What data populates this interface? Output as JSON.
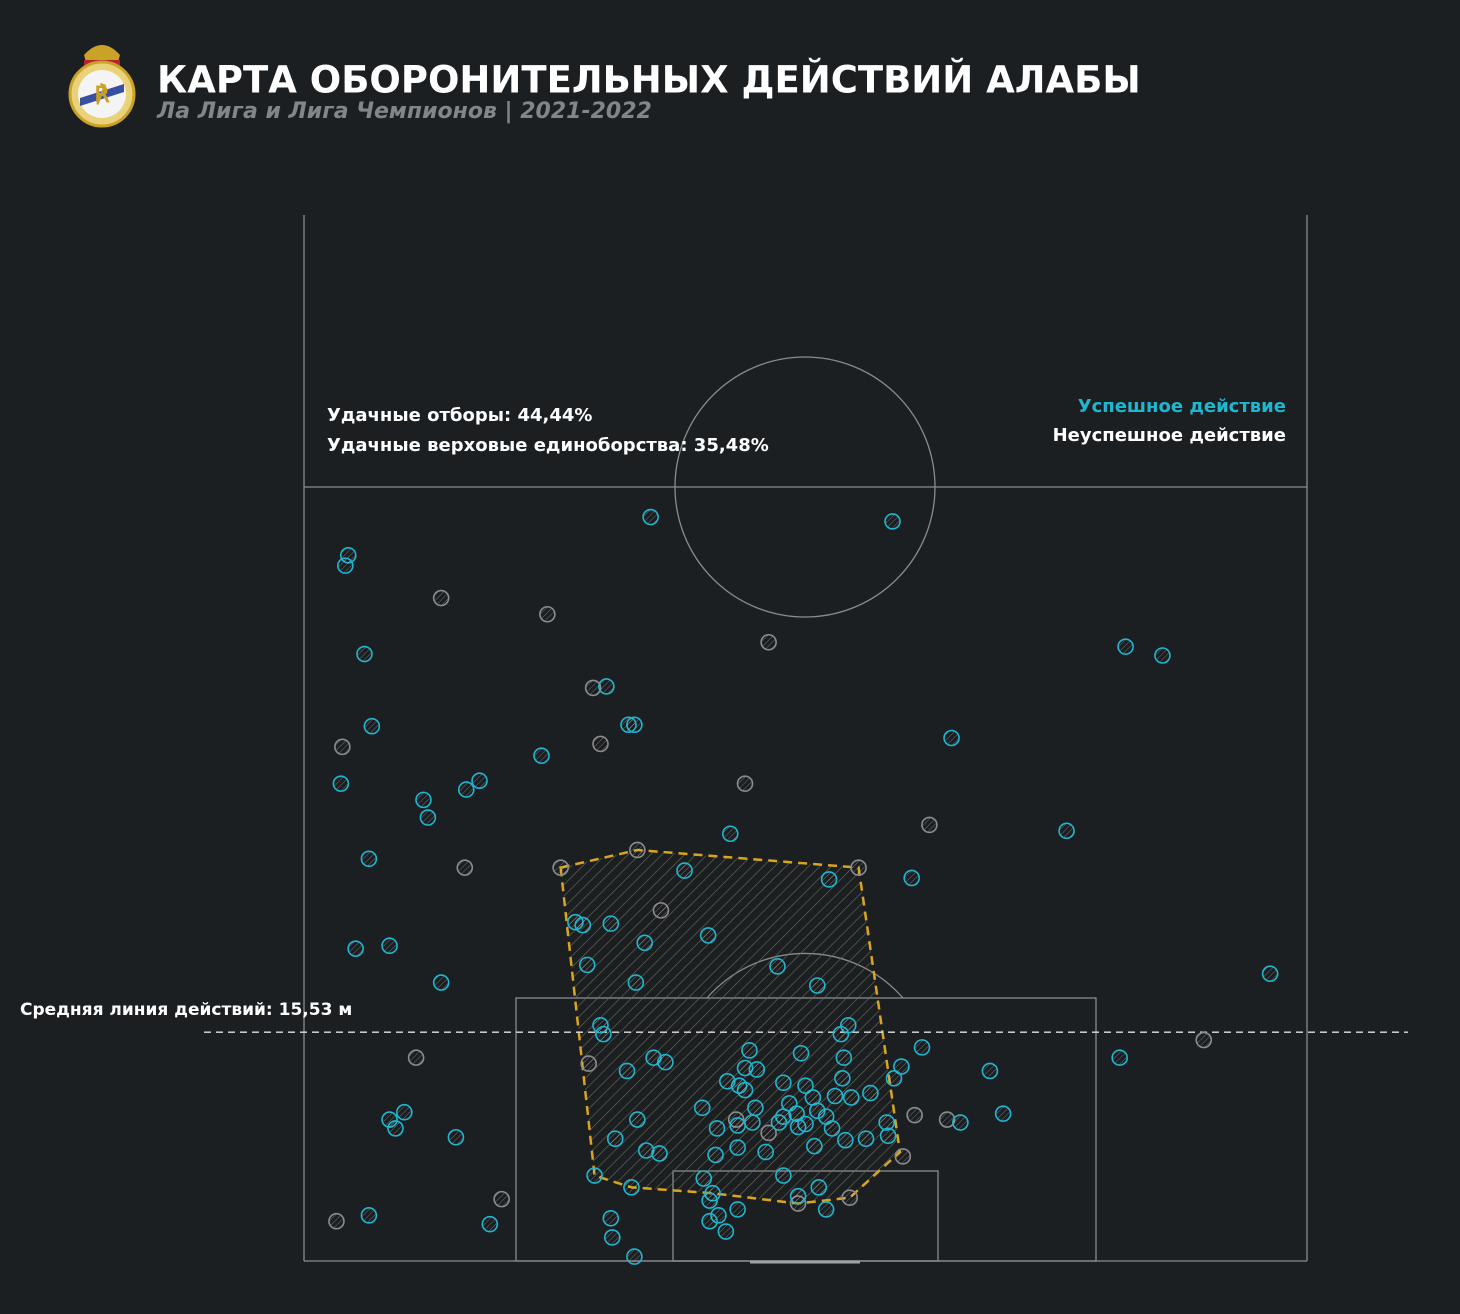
{
  "chart_data": {
    "type": "scatter",
    "title": "КАРТА ОБОРОНИТЕЛЬНЫХ ДЕЙСТВИЙ АЛАБЫ",
    "subtitle": "Ла Лига и Лига Чемпионов | 2021-2022",
    "stats": [
      "Удачные отборы: 44,44%",
      "Удачные верховые единоборства: 35,48%"
    ],
    "average_line": {
      "value": 15.53,
      "label": "Средняя линия действий: 15,53 м"
    },
    "xlim": [
      0,
      68
    ],
    "ylim": [
      0,
      71
    ],
    "hull": {
      "color": "#d9a520",
      "x": [
        17.4,
        22.6,
        37.6,
        40.4,
        37.0,
        33.5,
        27.7,
        22.2,
        19.7
      ],
      "y": [
        26.7,
        27.9,
        26.7,
        7.4,
        4.3,
        3.9,
        4.6,
        5.0,
        5.8
      ]
    },
    "series": [
      {
        "name": "Успешное действие",
        "color": "#1fb6cf",
        "x": [
          23.5,
          39.9,
          3.0,
          2.8,
          4.1,
          20.5,
          4.6,
          22.4,
          22.0,
          16.1,
          2.5,
          11.9,
          11.0,
          8.1,
          8.4,
          4.4,
          28.9,
          25.8,
          35.6,
          41.2,
          43.9,
          55.7,
          58.2,
          51.7,
          3.5,
          5.8,
          9.3,
          18.4,
          18.9,
          20.8,
          23.1,
          27.4,
          19.2,
          22.5,
          32.1,
          34.8,
          65.5,
          20.1,
          20.3,
          36.9,
          36.4,
          41.9,
          30.2,
          33.7,
          36.6,
          23.7,
          24.5,
          21.9,
          55.3,
          46.5,
          40.5,
          40.0,
          29.9,
          28.7,
          29.5,
          29.9,
          30.7,
          32.5,
          34.0,
          34.5,
          36.5,
          36.0,
          38.4,
          37.1,
          32.9,
          33.4,
          34.8,
          35.4,
          32.5,
          27.0,
          30.6,
          32.2,
          34.0,
          35.8,
          36.7,
          38.1,
          39.5,
          39.6,
          47.4,
          44.5,
          22.6,
          21.1,
          23.2,
          24.1,
          28.0,
          29.4,
          30.4,
          27.9,
          29.4,
          31.3,
          34.6,
          33.5,
          5.8,
          6.2,
          6.8,
          10.3,
          19.7,
          22.2,
          27.1,
          27.7,
          27.5,
          32.5,
          33.5,
          34.9,
          35.4,
          29.4,
          28.1,
          27.5,
          28.6,
          20.8,
          20.9,
          22.4,
          4.4,
          12.6
        ],
        "y": [
          50.5,
          50.2,
          47.9,
          47.2,
          41.2,
          39.0,
          36.3,
          36.4,
          36.4,
          34.3,
          32.4,
          32.6,
          32.0,
          31.3,
          30.1,
          27.3,
          29.0,
          26.5,
          25.9,
          26.0,
          35.5,
          41.7,
          41.1,
          29.2,
          21.2,
          21.4,
          18.9,
          23.0,
          22.8,
          22.9,
          21.6,
          22.1,
          20.1,
          18.9,
          20.0,
          18.7,
          19.5,
          16.0,
          15.4,
          16.0,
          15.4,
          14.5,
          14.3,
          14.1,
          13.8,
          13.8,
          13.5,
          12.9,
          13.8,
          12.9,
          13.2,
          12.4,
          13.1,
          12.2,
          11.9,
          11.6,
          13.0,
          12.1,
          11.9,
          11.1,
          12.4,
          11.2,
          11.4,
          11.1,
          10.7,
          10.0,
          10.2,
          9.8,
          9.8,
          10.4,
          10.4,
          9.4,
          9.3,
          9.0,
          8.2,
          8.3,
          9.4,
          8.5,
          10.0,
          9.4,
          9.6,
          8.3,
          7.5,
          7.3,
          9.0,
          9.2,
          9.4,
          7.2,
          7.7,
          7.4,
          7.8,
          9.1,
          9.6,
          9.0,
          10.1,
          8.4,
          5.8,
          5.0,
          5.6,
          4.6,
          4.1,
          5.8,
          4.4,
          5.0,
          3.5,
          3.5,
          3.1,
          2.7,
          2.0,
          2.9,
          1.6,
          0.3,
          3.1,
          2.5
        ]
      },
      {
        "name": "Неуспешное действие",
        "color": "#8c8c8c",
        "x": [
          9.3,
          16.5,
          31.5,
          19.6,
          20.1,
          2.6,
          29.9,
          42.4,
          10.9,
          22.6,
          17.4,
          37.6,
          24.2,
          7.6,
          19.3,
          61.0,
          41.4,
          43.6,
          29.3,
          31.5,
          40.6,
          37.0,
          33.5,
          13.4,
          2.2
        ],
        "y": [
          45.0,
          43.9,
          42.0,
          38.9,
          35.1,
          34.9,
          32.4,
          29.6,
          26.7,
          27.9,
          26.7,
          26.7,
          23.8,
          13.8,
          13.4,
          15.0,
          9.9,
          9.6,
          9.6,
          8.7,
          7.1,
          4.3,
          3.9,
          4.2,
          2.7
        ]
      }
    ]
  }
}
